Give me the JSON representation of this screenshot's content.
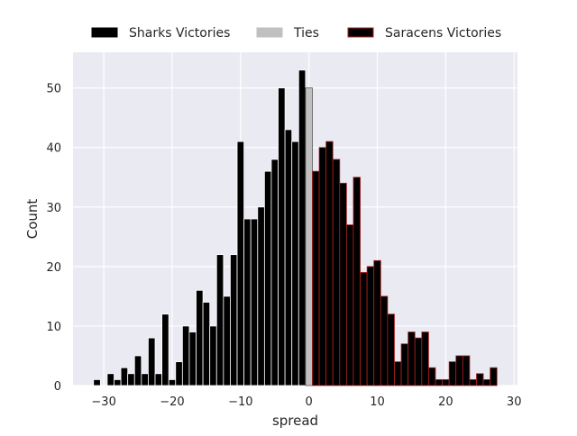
{
  "chart_data": {
    "type": "bar",
    "xlabel": "spread",
    "ylabel": "Count",
    "xlim": [
      -34.5,
      30.5
    ],
    "ylim": [
      0,
      56
    ],
    "xticks": [
      -30,
      -20,
      -10,
      0,
      10,
      20,
      30
    ],
    "yticks": [
      0,
      10,
      20,
      30,
      40,
      50
    ],
    "xtick_labels": [
      "−30",
      "−20",
      "−10",
      "0",
      "10",
      "20",
      "30"
    ],
    "ytick_labels": [
      "0",
      "10",
      "20",
      "30",
      "40",
      "50"
    ],
    "grid": true,
    "legend_position": "top-center",
    "legend": [
      {
        "label": "Sharks Victories",
        "color": "#000000",
        "edge": "#000000"
      },
      {
        "label": "Ties",
        "color": "#c0c0c0",
        "edge": "#c0c0c0"
      },
      {
        "label": "Saracens Victories",
        "color": "#000000",
        "edge": "#b22222"
      }
    ],
    "series": [
      {
        "name": "Sharks Victories",
        "color": "#000000",
        "edge": "#ffffff",
        "x": [
          -31,
          -30,
          -29,
          -28,
          -27,
          -26,
          -25,
          -24,
          -23,
          -22,
          -21,
          -20,
          -19,
          -18,
          -17,
          -16,
          -15,
          -14,
          -13,
          -12,
          -11,
          -10,
          -9,
          -8,
          -7,
          -6,
          -5,
          -4,
          -3,
          -2,
          -1
        ],
        "values": [
          1,
          0,
          2,
          1,
          3,
          2,
          5,
          2,
          8,
          2,
          12,
          1,
          4,
          10,
          9,
          16,
          14,
          10,
          22,
          15,
          22,
          41,
          28,
          28,
          30,
          36,
          38,
          50,
          43,
          41,
          53
        ]
      },
      {
        "name": "Ties",
        "color": "#c0c0c0",
        "edge": "#555555",
        "x": [
          0
        ],
        "values": [
          50
        ]
      },
      {
        "name": "Saracens Victories",
        "color": "#000000",
        "edge": "#b22222",
        "x": [
          1,
          2,
          3,
          4,
          5,
          6,
          7,
          8,
          9,
          10,
          11,
          12,
          13,
          14,
          15,
          16,
          17,
          18,
          19,
          20,
          21,
          22,
          23,
          24,
          25,
          26,
          27
        ],
        "values": [
          36,
          40,
          41,
          38,
          34,
          27,
          35,
          19,
          20,
          21,
          15,
          12,
          4,
          7,
          9,
          8,
          9,
          3,
          1,
          1,
          4,
          5,
          5,
          1,
          2,
          1,
          3
        ]
      }
    ]
  }
}
